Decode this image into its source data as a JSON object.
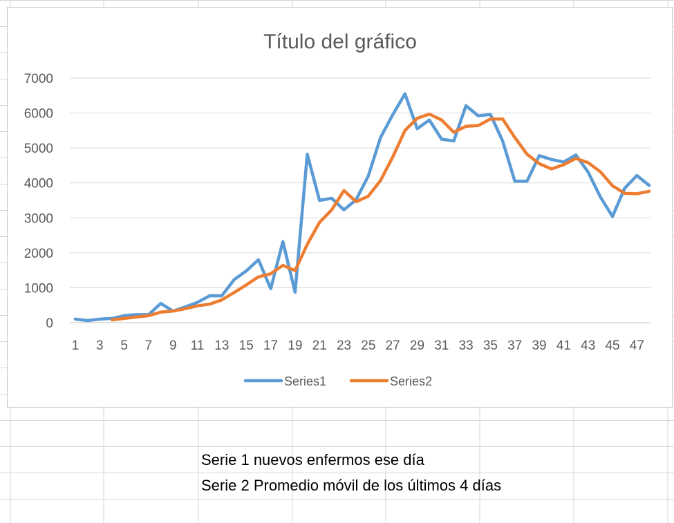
{
  "sheet_notes": [
    "Serie 1 nuevos enfermos ese día",
    "Serie 2 Promedio móvil de los últimos 4 días"
  ],
  "chart_data": {
    "type": "line",
    "title": "Título del gráfico",
    "xlabel": "",
    "ylabel": "",
    "x": [
      1,
      2,
      3,
      4,
      5,
      6,
      7,
      8,
      9,
      10,
      11,
      12,
      13,
      14,
      15,
      16,
      17,
      18,
      19,
      20,
      21,
      22,
      23,
      24,
      25,
      26,
      27,
      28,
      29,
      30,
      31,
      32,
      33,
      34,
      35,
      36,
      37,
      38,
      39,
      40,
      41,
      42,
      43,
      44,
      45,
      46,
      47,
      48
    ],
    "x_tick_labels": [
      "1",
      "3",
      "5",
      "7",
      "9",
      "11",
      "13",
      "15",
      "17",
      "19",
      "21",
      "23",
      "25",
      "27",
      "29",
      "31",
      "33",
      "35",
      "37",
      "39",
      "41",
      "43",
      "45",
      "47"
    ],
    "y_ticks": [
      0,
      1000,
      2000,
      3000,
      4000,
      5000,
      6000,
      7000
    ],
    "ylim": [
      0,
      7000
    ],
    "grid": true,
    "legend_position": "bottom",
    "series": [
      {
        "name": "Series1",
        "color": "#5b9bd5",
        "values": [
          100,
          60,
          100,
          120,
          200,
          230,
          230,
          550,
          330,
          450,
          580,
          770,
          770,
          1230,
          1480,
          1800,
          970,
          2320,
          870,
          4820,
          3500,
          3560,
          3230,
          3520,
          4200,
          5300,
          5950,
          6550,
          5550,
          5800,
          5250,
          5200,
          6210,
          5920,
          5960,
          5200,
          4050,
          4050,
          4780,
          4670,
          4600,
          4800,
          4310,
          3600,
          3040,
          3850,
          4210,
          3930
        ]
      },
      {
        "name": "Series2",
        "color": "#ed7d31",
        "values": [
          null,
          null,
          null,
          80,
          120,
          160,
          200,
          300,
          330,
          400,
          480,
          530,
          650,
          860,
          1080,
          1310,
          1400,
          1640,
          1490,
          2240,
          2870,
          3230,
          3780,
          3460,
          3620,
          4070,
          4740,
          5500,
          5850,
          5970,
          5800,
          5450,
          5620,
          5640,
          5830,
          5830,
          5300,
          4820,
          4550,
          4400,
          4520,
          4700,
          4580,
          4320,
          3920,
          3700,
          3690,
          3760
        ]
      }
    ]
  }
}
